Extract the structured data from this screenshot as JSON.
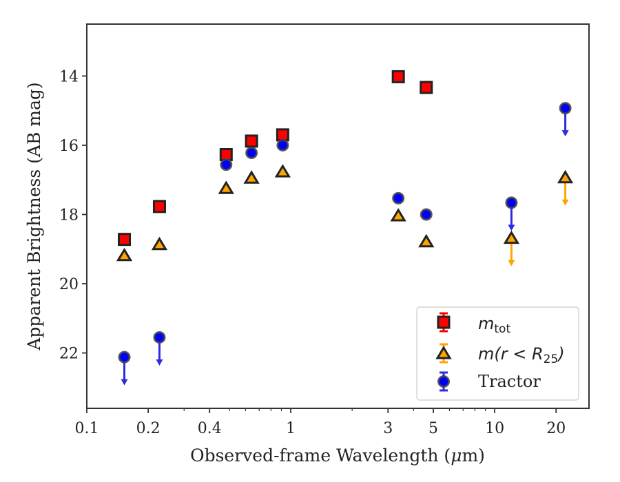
{
  "chart_data": {
    "type": "scatter",
    "xlabel_prefix": "Observed-frame Wavelength (",
    "xlabel_mu": "μ",
    "xlabel_suffix": "m)",
    "ylabel": "Apparent Brightness (AB mag)",
    "x_scale": "log",
    "xlim": [
      0.1,
      29
    ],
    "ylim": [
      23.6,
      12.5
    ],
    "y_inverted": true,
    "x_ticks": [
      {
        "value": 0.1,
        "label": "0.1"
      },
      {
        "value": 0.2,
        "label": "0.2"
      },
      {
        "value": 0.4,
        "label": "0.4"
      },
      {
        "value": 1,
        "label": "1"
      },
      {
        "value": 3,
        "label": "3"
      },
      {
        "value": 5,
        "label": "5"
      },
      {
        "value": 10,
        "label": "10"
      },
      {
        "value": 20,
        "label": "20"
      }
    ],
    "y_ticks": [
      {
        "value": 14,
        "label": "14"
      },
      {
        "value": 16,
        "label": "16"
      },
      {
        "value": 18,
        "label": "18"
      },
      {
        "value": 20,
        "label": "20"
      },
      {
        "value": 22,
        "label": "22"
      }
    ],
    "grid": false,
    "legend_placement": "lower-right",
    "series": [
      {
        "name": "m_tot",
        "marker": "square",
        "face_color": "#ff0000",
        "edge_color": "#222222",
        "x": [
          0.1528,
          0.2271,
          0.4823,
          0.6423,
          0.9133,
          3.368,
          4.618
        ],
        "y": [
          18.72,
          17.77,
          16.27,
          15.88,
          15.7,
          14.02,
          14.33
        ],
        "upper_limit": [
          false,
          false,
          false,
          false,
          false,
          false,
          false
        ]
      },
      {
        "name": "m(r<R25)",
        "marker": "triangle",
        "face_color": "#ffa500",
        "edge_color": "#222222",
        "x": [
          0.1528,
          0.2271,
          0.4823,
          0.6423,
          0.9133,
          3.368,
          4.618,
          12.08,
          22.19
        ],
        "y": [
          19.18,
          18.86,
          17.24,
          16.94,
          16.76,
          18.03,
          18.78,
          18.68,
          16.93
        ],
        "upper_limit": [
          false,
          false,
          false,
          false,
          false,
          false,
          false,
          true,
          true
        ]
      },
      {
        "name": "Tractor",
        "marker": "circle",
        "face_color": "#0000ff",
        "edge_color": "#222222",
        "x": [
          0.1528,
          0.2271,
          0.4823,
          0.6423,
          0.9133,
          3.368,
          4.618,
          12.08,
          22.19
        ],
        "y": [
          22.12,
          21.55,
          16.56,
          16.22,
          16.0,
          17.53,
          18.0,
          17.66,
          14.93
        ],
        "upper_limit": [
          true,
          true,
          false,
          false,
          false,
          false,
          false,
          true,
          true
        ]
      }
    ]
  },
  "legend": {
    "mtot_main": "m",
    "mtot_sub": "tot",
    "mr_main": "m(r < R",
    "mr_sub": "25",
    "mr_close": ")",
    "tractor": "Tractor"
  },
  "colors": {
    "square_limit": "#ff0000",
    "triangle_limit": "#ffa500",
    "circle_limit": "#2b2bdf",
    "axis": "#333333"
  }
}
